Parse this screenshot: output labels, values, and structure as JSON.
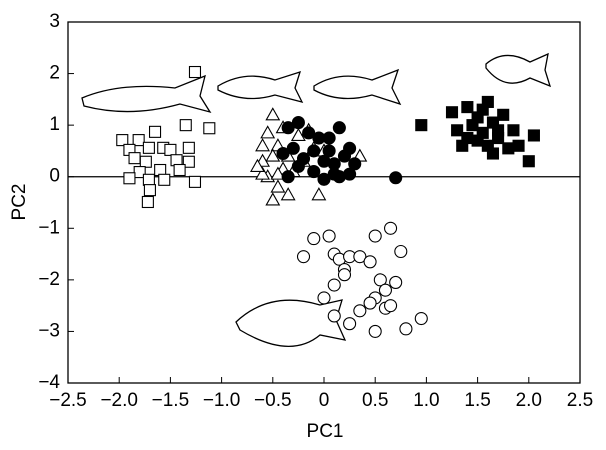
{
  "chart_data": {
    "type": "scatter",
    "xlabel": "PC1",
    "ylabel": "PC2",
    "xlim": [
      -2.5,
      2.5
    ],
    "xticks": [
      {
        "value": -2.5,
        "label": "−2.5"
      },
      {
        "value": -2.0,
        "label": "−2.0"
      },
      {
        "value": -1.5,
        "label": "−1.5"
      },
      {
        "value": -1.0,
        "label": "−1.0"
      },
      {
        "value": -0.5,
        "label": "−0.5"
      },
      0,
      0.5,
      {
        "value": 1.0,
        "label": "1.0"
      },
      1.5,
      {
        "value": 2.0,
        "label": "2.0"
      },
      2.5
    ],
    "ylim": [
      -4,
      3
    ],
    "yticks": [
      3,
      2,
      1,
      0,
      {
        "value": -1,
        "label": "−1"
      },
      {
        "value": -2,
        "label": "−2"
      },
      {
        "value": -3,
        "label": "−3"
      },
      {
        "value": -4,
        "label": "−4"
      }
    ],
    "zero_line": true,
    "series": [
      {
        "marker": "square",
        "filled": false,
        "color": "#000000",
        "x": [
          -1.26,
          -1.35,
          -1.12,
          -1.97,
          -1.81,
          -1.65,
          -1.9,
          -1.71,
          -1.57,
          -1.85,
          -1.74,
          -1.5,
          -1.32,
          -1.44,
          -1.32,
          -1.8,
          -1.6,
          -1.41,
          -1.9,
          -1.71,
          -1.56,
          -1.26,
          -1.7,
          -1.72
        ],
        "values": [
          2.03,
          1.0,
          0.94,
          0.71,
          0.71,
          0.87,
          0.52,
          0.56,
          0.56,
          0.36,
          0.29,
          0.52,
          0.56,
          0.32,
          0.29,
          0.09,
          0.13,
          0.13,
          -0.03,
          -0.06,
          -0.06,
          -0.1,
          -0.26,
          -0.49
        ]
      },
      {
        "marker": "triangle",
        "filled": false,
        "color": "#000000",
        "x": [
          -0.5,
          -0.55,
          -0.6,
          -0.45,
          -0.5,
          -0.6,
          -0.35,
          -0.4,
          -0.55,
          -0.45,
          -0.6,
          -0.3,
          -0.2,
          -0.1,
          0.0,
          -0.25,
          -0.15,
          -0.45,
          -0.5,
          -0.35,
          -0.05,
          0.35,
          -0.65,
          -0.4
        ],
        "values": [
          1.2,
          0.85,
          0.6,
          0.6,
          0.4,
          0.3,
          0.4,
          0.15,
          0.0,
          0.05,
          0.05,
          0.1,
          0.3,
          0.55,
          0.5,
          0.8,
          0.9,
          -0.2,
          -0.45,
          -0.35,
          -0.35,
          0.4,
          0.2,
          0.95
        ]
      },
      {
        "marker": "circle",
        "filled": true,
        "color": "#000000",
        "x": [
          -0.35,
          -0.25,
          -0.15,
          -0.05,
          0.05,
          0.15,
          0.25,
          -0.3,
          -0.2,
          -0.1,
          0.0,
          0.1,
          0.2,
          0.3,
          -0.35,
          -0.1,
          0.1,
          0.15,
          0.0,
          -0.25,
          0.25,
          0.7,
          -0.4,
          0.05
        ],
        "values": [
          0.95,
          1.05,
          0.85,
          0.75,
          0.75,
          0.95,
          0.55,
          0.55,
          0.35,
          0.5,
          0.3,
          0.25,
          0.4,
          0.25,
          0.0,
          0.1,
          0.05,
          0.0,
          -0.05,
          0.2,
          0.05,
          -0.02,
          0.45,
          0.5
        ]
      },
      {
        "marker": "square",
        "filled": true,
        "color": "#000000",
        "x": [
          0.95,
          1.25,
          1.4,
          1.6,
          1.3,
          1.45,
          1.55,
          1.65,
          1.75,
          1.5,
          1.6,
          1.7,
          1.85,
          2.05,
          1.65,
          1.8,
          2.0,
          1.35,
          1.5,
          1.9,
          1.55,
          1.7,
          1.4
        ],
        "values": [
          1.0,
          1.25,
          1.35,
          1.45,
          0.9,
          1.0,
          0.85,
          1.05,
          1.2,
          0.7,
          0.6,
          0.75,
          0.9,
          0.8,
          0.45,
          0.55,
          0.3,
          0.6,
          1.15,
          0.6,
          1.3,
          0.9,
          0.75
        ]
      },
      {
        "marker": "circle",
        "filled": false,
        "color": "#000000",
        "x": [
          -0.2,
          -0.1,
          0.05,
          0.1,
          0.15,
          0.25,
          0.2,
          0.35,
          0.45,
          0.1,
          0.5,
          0.65,
          0.75,
          0.55,
          0.7,
          0.6,
          0.5,
          0.6,
          0.45,
          0.35,
          0.65,
          0.0,
          0.1,
          0.25,
          0.5,
          0.8,
          0.95,
          0.2
        ],
        "values": [
          -1.55,
          -1.2,
          -1.15,
          -1.5,
          -1.6,
          -1.55,
          -1.8,
          -1.55,
          -1.65,
          -2.1,
          -1.15,
          -1.0,
          -1.45,
          -2.0,
          -2.05,
          -2.2,
          -2.35,
          -2.55,
          -2.45,
          -2.6,
          -2.5,
          -2.35,
          -2.7,
          -2.85,
          -3.0,
          -2.95,
          -2.75,
          -1.9
        ]
      }
    ]
  }
}
